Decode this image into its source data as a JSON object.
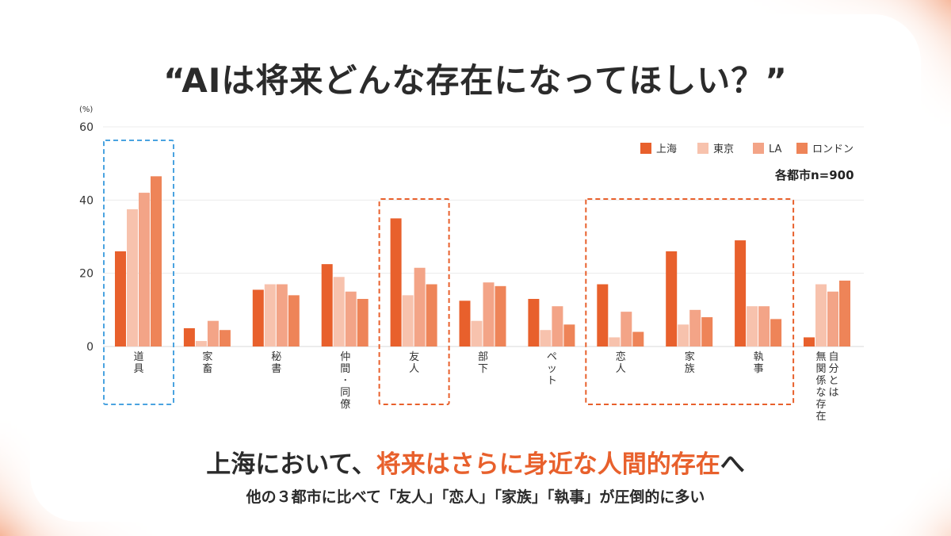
{
  "title": "“AIは将来どんな存在になってほしい？”",
  "headline": {
    "part1": "上海において、",
    "part2": "将来はさらに身近な人間的存在",
    "part3": "へ"
  },
  "subline": "他の３都市に比べて「友人」「恋人」「家族」「執事」が圧倒的に多い",
  "sample_note": "各都市n=900",
  "chart_data": {
    "type": "bar",
    "ylabel": "(%)",
    "ylim": [
      0,
      60
    ],
    "yticks": [
      0,
      20,
      40,
      60
    ],
    "grid": true,
    "legend_position": "top-right",
    "categories": [
      "道具",
      "家畜",
      "秘書",
      "仲間・同僚",
      "友人",
      "部下",
      "ペット",
      "恋人",
      "家族",
      "執事",
      "自分とは無関係な存在"
    ],
    "category_lines": [
      [
        "道具"
      ],
      [
        "家畜"
      ],
      [
        "秘書"
      ],
      [
        "仲間・同僚"
      ],
      [
        "友人"
      ],
      [
        "部下"
      ],
      [
        "ペット"
      ],
      [
        "恋人"
      ],
      [
        "家族"
      ],
      [
        "執事"
      ],
      [
        "自分とは",
        "無関係な存在"
      ]
    ],
    "series": [
      {
        "name": "上海",
        "color": "#e8602c",
        "values": [
          26,
          5,
          15.5,
          22.5,
          35,
          12.5,
          13,
          17,
          26,
          29,
          2.5
        ]
      },
      {
        "name": "東京",
        "color": "#f7c2ad",
        "values": [
          37.5,
          1.5,
          17,
          19,
          14,
          7,
          4.5,
          2.5,
          6,
          11,
          17
        ]
      },
      {
        "name": "LA",
        "color": "#f3a487",
        "values": [
          42,
          7,
          17,
          15,
          21.5,
          17.5,
          11,
          9.5,
          10,
          11,
          15
        ]
      },
      {
        "name": "ロンドン",
        "color": "#ee8458",
        "values": [
          46.5,
          4.5,
          14,
          13,
          17,
          16.5,
          6,
          4,
          8,
          7.5,
          18
        ]
      }
    ],
    "highlights": [
      {
        "color": "#4aa3e0",
        "categories": [
          0
        ]
      },
      {
        "color": "#e8602c",
        "categories": [
          4
        ]
      },
      {
        "color": "#e8602c",
        "categories": [
          7,
          9
        ]
      }
    ]
  }
}
